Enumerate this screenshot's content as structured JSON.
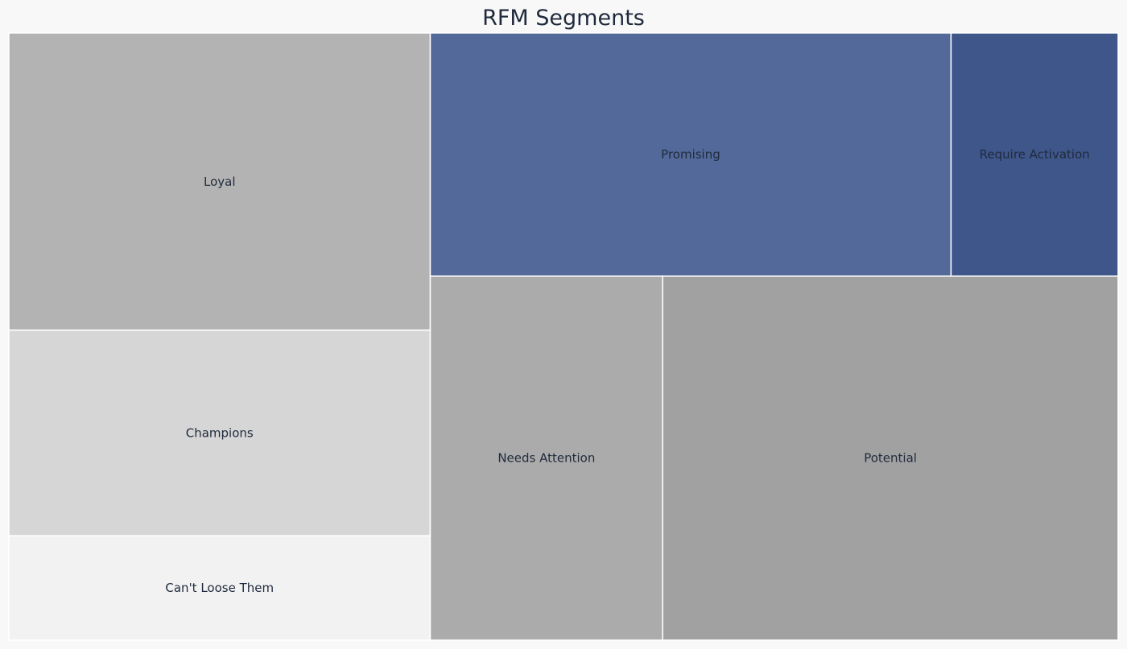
{
  "chart_data": {
    "type": "treemap",
    "title": "RFM Segments",
    "grid": false,
    "legend": "none",
    "segments": [
      {
        "label": "Loyal",
        "value": 18.5,
        "color": "#b3b3b3"
      },
      {
        "label": "Champions",
        "value": 12.8,
        "color": "#d6d6d6"
      },
      {
        "label": "Can't Loose Them",
        "value": 6.5,
        "color": "#f2f2f2"
      },
      {
        "label": "Promising",
        "value": 18.7,
        "color": "#53699a"
      },
      {
        "label": "Require Activation",
        "value": 6.0,
        "color": "#3f568b"
      },
      {
        "label": "Needs Attention",
        "value": 12.5,
        "color": "#ababab"
      },
      {
        "label": "Potential",
        "value": 24.5,
        "color": "#a1a1a1"
      }
    ]
  }
}
